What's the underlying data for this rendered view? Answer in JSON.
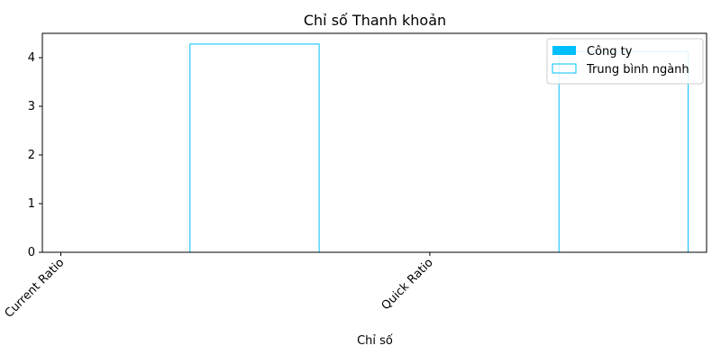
{
  "chart_data": {
    "type": "bar",
    "title": "Chỉ số Thanh khoản",
    "xlabel": "Chỉ số",
    "ylabel": "",
    "categories": [
      "Current Ratio",
      "Quick Ratio"
    ],
    "ylim": [
      0,
      4.5
    ],
    "yticks": [
      0,
      1,
      2,
      3,
      4
    ],
    "series": [
      {
        "name": "Công ty",
        "values": [
          0,
          0
        ],
        "color": "#00bfff",
        "style": "filled"
      },
      {
        "name": "Trung bình ngành",
        "values": [
          4.28,
          4.12
        ],
        "color": "#00bfff",
        "style": "outline"
      }
    ],
    "legend_position": "top-right",
    "grid": false
  }
}
